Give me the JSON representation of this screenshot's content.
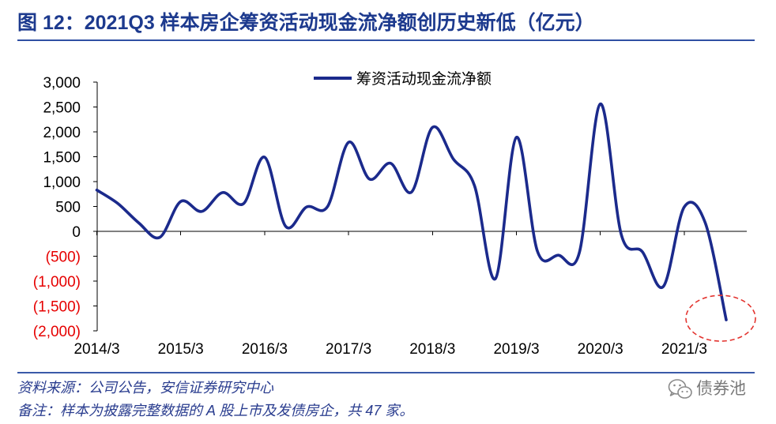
{
  "colors": {
    "title": "#1d3a8e",
    "rule": "#2f4fa3",
    "footer_text": "#2a3d8f",
    "watermark": "#7a7a7a"
  },
  "chart_data": {
    "type": "line",
    "title": "图 12：2021Q3 样本房企筹资活动现金流净额创历史新低（亿元）",
    "x": [
      "2014/3",
      "2014/6",
      "2014/9",
      "2014/12",
      "2015/3",
      "2015/6",
      "2015/9",
      "2015/12",
      "2016/3",
      "2016/6",
      "2016/9",
      "2016/12",
      "2017/3",
      "2017/6",
      "2017/9",
      "2017/12",
      "2018/3",
      "2018/6",
      "2018/9",
      "2018/12",
      "2019/3",
      "2019/6",
      "2019/9",
      "2019/12",
      "2020/3",
      "2020/6",
      "2020/9",
      "2020/12",
      "2021/3",
      "2021/6",
      "2021/9"
    ],
    "series": [
      {
        "name": "筹资活动现金流净额",
        "color": "#1b2a8c",
        "smooth": true,
        "values": [
          830,
          560,
          170,
          -120,
          600,
          400,
          780,
          560,
          1490,
          100,
          490,
          500,
          1790,
          1050,
          1370,
          790,
          2090,
          1450,
          920,
          -950,
          1890,
          -400,
          -480,
          -430,
          2560,
          -70,
          -410,
          -1110,
          490,
          170,
          -1780
        ]
      }
    ],
    "x_axis": {
      "tick_labels": [
        "2014/3",
        "2015/3",
        "2016/3",
        "2017/3",
        "2018/3",
        "2019/3",
        "2020/3",
        "2021/3"
      ],
      "label_position": "bottom"
    },
    "y_axis": {
      "ylim": [
        -2000,
        3000
      ],
      "ticks": [
        3000,
        2500,
        2000,
        1500,
        1000,
        500,
        0,
        -500,
        -1000,
        -1500,
        -2000
      ],
      "tick_labels": [
        "3,000",
        "2,500",
        "2,000",
        "1,500",
        "1,000",
        "500",
        "0",
        "(500)",
        "(1,000)",
        "(1,500)",
        "(2,000)"
      ],
      "label_color": "#000000",
      "negative_label_color": "#e60000"
    },
    "legend": {
      "position": "top"
    },
    "grid": false,
    "annotation": {
      "shape": "ellipse",
      "line_style": "dashed",
      "color": "#e3342f",
      "target_x": "2021/9"
    }
  },
  "footer": {
    "source": "资料来源：公司公告，安信证券研究中心",
    "note": "备注：样本为披露完整数据的 A 股上市及发债房企，共 47 家。"
  },
  "watermark": {
    "icon": "wechat-icon",
    "text": "债券池"
  }
}
